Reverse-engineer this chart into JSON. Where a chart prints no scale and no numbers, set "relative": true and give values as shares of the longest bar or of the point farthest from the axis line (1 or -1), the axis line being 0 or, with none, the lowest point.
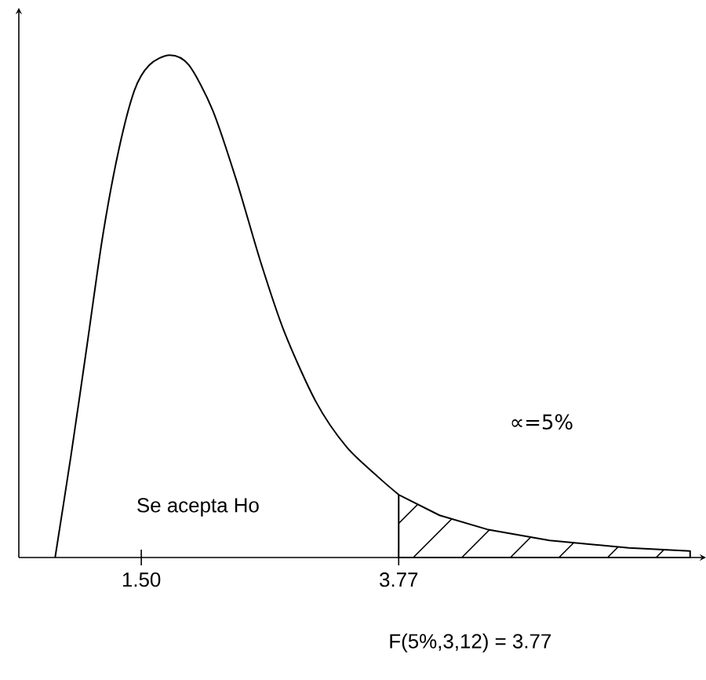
{
  "chart_data": {
    "type": "line",
    "relative": true,
    "xlim": [
      0.42,
      6.48
    ],
    "xticks": [
      {
        "value": 1.5,
        "label": "1.50"
      },
      {
        "value": 3.77,
        "label": "3.77"
      }
    ],
    "tick_labels": "x",
    "series": [
      {
        "type": "line",
        "color": "#000000",
        "x": [
          0.74,
          0.88,
          1.02,
          1.16,
          1.3,
          1.44,
          1.57,
          1.75,
          1.92,
          2.13,
          2.34,
          2.55,
          2.76,
          3.04,
          3.31,
          3.59,
          3.77
        ],
        "values": [
          0,
          0.203,
          0.42,
          0.64,
          0.81,
          0.93,
          0.98,
          1,
          0.98,
          0.89,
          0.75,
          0.59,
          0.45,
          0.31,
          0.22,
          0.16,
          0.125
        ]
      },
      {
        "type": "area",
        "color": "#ffffff",
        "x": [
          3.77,
          4.13,
          4.55,
          5.1,
          5.8,
          6.34
        ],
        "values": [
          0.125,
          0.084,
          0.056,
          0.034,
          0.019,
          0.013
        ]
      }
    ],
    "annotations": [
      "Se acepta Ho",
      "∝=5%",
      "F(5%,3,12) = 3.77"
    ]
  }
}
